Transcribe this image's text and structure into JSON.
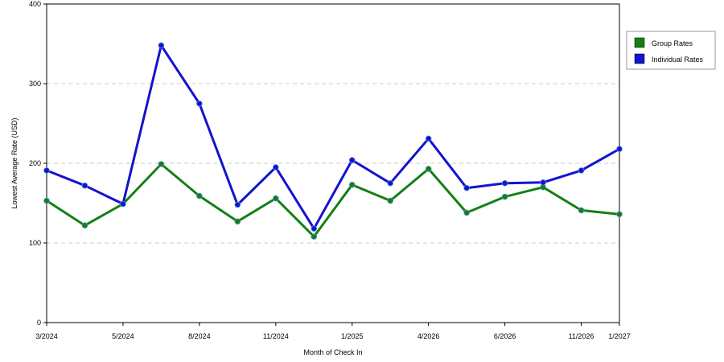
{
  "chart_data": {
    "type": "line",
    "xlabel": "Month of Check In",
    "ylabel": "Lowest Average Rate (USD)",
    "ylim": [
      0,
      400
    ],
    "yticks": [
      "0",
      "100",
      "200",
      "300",
      "400"
    ],
    "grid": "horizontal dashed",
    "legend_position": "right",
    "x_tick_labels": [
      {
        "index": 0,
        "label": "3/2024"
      },
      {
        "index": 2,
        "label": "5/2024"
      },
      {
        "index": 4,
        "label": "8/2024"
      },
      {
        "index": 6,
        "label": "11/2024"
      },
      {
        "index": 8,
        "label": "1/2025"
      },
      {
        "index": 10,
        "label": "4/2026"
      },
      {
        "index": 12,
        "label": "6/2026"
      },
      {
        "index": 14,
        "label": "11/2026"
      },
      {
        "index": 15,
        "label": "1/2027"
      }
    ],
    "point_count": 16,
    "series": [
      {
        "name": "Group Rates",
        "color": "#138013",
        "values": [
          153,
          122,
          149,
          199,
          159,
          127,
          156,
          108,
          173,
          153,
          193,
          138,
          158,
          170,
          141,
          136
        ]
      },
      {
        "name": "Individual Rates",
        "color": "#1313d0",
        "values": [
          191,
          172,
          149,
          348,
          275,
          148,
          195,
          118,
          204,
          175,
          231,
          169,
          175,
          176,
          191,
          218
        ]
      }
    ]
  }
}
